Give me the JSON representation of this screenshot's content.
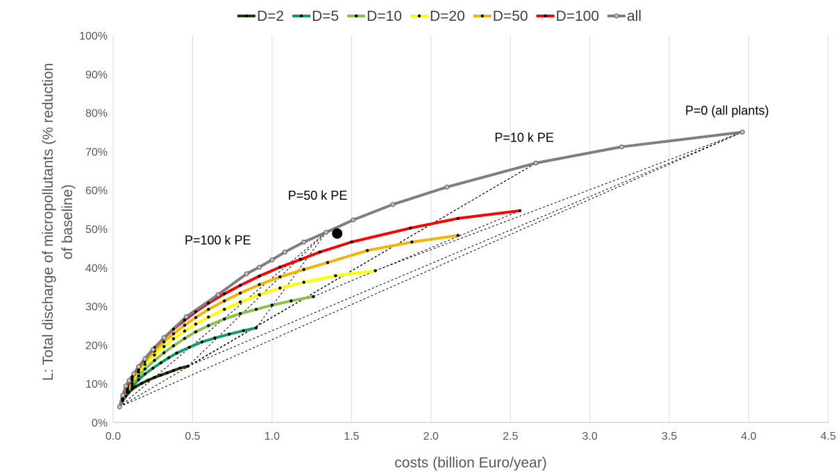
{
  "chart_data": {
    "type": "line",
    "xlabel": "costs (billion Euro/year)",
    "ylabel": "L: Total discharge of micropollutants (% reduction of baseline)",
    "xlim": [
      0,
      4.5
    ],
    "ylim": [
      0,
      100
    ],
    "x_ticks": [
      "0.0",
      "0.5",
      "1.0",
      "1.5",
      "2.0",
      "2.5",
      "3.0",
      "3.5",
      "4.0",
      "4.5"
    ],
    "y_ticks": [
      "0%",
      "10%",
      "20%",
      "30%",
      "40%",
      "50%",
      "60%",
      "70%",
      "80%",
      "90%",
      "100%"
    ],
    "grid": "vertical",
    "legend_position": "top",
    "series": [
      {
        "name": "D=2",
        "color": "#1f3d0c",
        "points": [
          [
            0.04,
            4
          ],
          [
            0.06,
            5.6
          ],
          [
            0.08,
            6.8
          ],
          [
            0.1,
            7.8
          ],
          [
            0.12,
            8.6
          ],
          [
            0.14,
            9.2
          ],
          [
            0.18,
            10.1
          ],
          [
            0.22,
            10.9
          ],
          [
            0.26,
            11.6
          ],
          [
            0.3,
            12.2
          ],
          [
            0.34,
            12.8
          ],
          [
            0.38,
            13.4
          ],
          [
            0.42,
            14
          ],
          [
            0.47,
            14.5
          ]
        ]
      },
      {
        "name": "D=5",
        "color": "#0f9e63",
        "points": [
          [
            0.04,
            4
          ],
          [
            0.06,
            5.8
          ],
          [
            0.09,
            7.6
          ],
          [
            0.12,
            9.3
          ],
          [
            0.16,
            11
          ],
          [
            0.2,
            12.5
          ],
          [
            0.25,
            14
          ],
          [
            0.3,
            15.4
          ],
          [
            0.35,
            16.7
          ],
          [
            0.4,
            17.9
          ],
          [
            0.48,
            19.4
          ],
          [
            0.56,
            20.8
          ],
          [
            0.64,
            21.8
          ],
          [
            0.73,
            22.8
          ],
          [
            0.82,
            23.7
          ],
          [
            0.9,
            24.4
          ]
        ]
      },
      {
        "name": "D=10",
        "color": "#8bc34a",
        "points": [
          [
            0.04,
            4
          ],
          [
            0.06,
            6.2
          ],
          [
            0.09,
            8.2
          ],
          [
            0.12,
            10
          ],
          [
            0.16,
            12
          ],
          [
            0.2,
            13.8
          ],
          [
            0.26,
            16
          ],
          [
            0.32,
            18
          ],
          [
            0.38,
            19.8
          ],
          [
            0.45,
            21.7
          ],
          [
            0.52,
            23.4
          ],
          [
            0.6,
            25
          ],
          [
            0.7,
            26.7
          ],
          [
            0.8,
            28.1
          ],
          [
            0.9,
            29.2
          ],
          [
            1.0,
            30.3
          ],
          [
            1.12,
            31.4
          ],
          [
            1.26,
            32.5
          ]
        ]
      },
      {
        "name": "D=20",
        "color": "#ffff00",
        "points": [
          [
            0.04,
            4
          ],
          [
            0.06,
            6.4
          ],
          [
            0.09,
            8.7
          ],
          [
            0.12,
            10.8
          ],
          [
            0.16,
            13
          ],
          [
            0.2,
            15
          ],
          [
            0.26,
            17.4
          ],
          [
            0.32,
            19.6
          ],
          [
            0.38,
            21.6
          ],
          [
            0.45,
            23.6
          ],
          [
            0.52,
            25.4
          ],
          [
            0.6,
            27.2
          ],
          [
            0.7,
            29.2
          ],
          [
            0.8,
            31.1
          ],
          [
            0.92,
            33
          ],
          [
            1.05,
            34.7
          ],
          [
            1.2,
            36.2
          ],
          [
            1.4,
            37.9
          ],
          [
            1.65,
            39.2
          ]
        ]
      },
      {
        "name": "D=50",
        "color": "#f5b400",
        "points": [
          [
            0.04,
            4
          ],
          [
            0.06,
            6.6
          ],
          [
            0.09,
            9
          ],
          [
            0.12,
            11.3
          ],
          [
            0.16,
            13.6
          ],
          [
            0.2,
            15.8
          ],
          [
            0.26,
            18.4
          ],
          [
            0.32,
            20.8
          ],
          [
            0.38,
            22.9
          ],
          [
            0.45,
            25.1
          ],
          [
            0.52,
            27.1
          ],
          [
            0.6,
            29.2
          ],
          [
            0.7,
            31.4
          ],
          [
            0.8,
            33.4
          ],
          [
            0.92,
            35.6
          ],
          [
            1.05,
            37.6
          ],
          [
            1.2,
            39.5
          ],
          [
            1.35,
            41.3
          ],
          [
            1.6,
            44.4
          ],
          [
            1.88,
            46.6
          ],
          [
            2.17,
            48.3
          ]
        ]
      },
      {
        "name": "D=100",
        "color": "#ff0000",
        "points": [
          [
            0.04,
            4
          ],
          [
            0.06,
            6.8
          ],
          [
            0.09,
            9.3
          ],
          [
            0.12,
            11.8
          ],
          [
            0.16,
            14.2
          ],
          [
            0.2,
            16.5
          ],
          [
            0.26,
            19.3
          ],
          [
            0.32,
            21.8
          ],
          [
            0.38,
            24.1
          ],
          [
            0.45,
            26.4
          ],
          [
            0.52,
            28.6
          ],
          [
            0.6,
            30.8
          ],
          [
            0.7,
            33.2
          ],
          [
            0.8,
            35.4
          ],
          [
            0.92,
            37.8
          ],
          [
            1.05,
            40.1
          ],
          [
            1.18,
            42.1
          ],
          [
            1.3,
            44
          ],
          [
            1.5,
            46.6
          ],
          [
            1.87,
            50.2
          ],
          [
            2.17,
            52.7
          ],
          [
            2.56,
            54.7
          ]
        ]
      },
      {
        "name": "all",
        "color": "#7f7f7f",
        "points": [
          [
            0.04,
            4
          ],
          [
            0.06,
            7
          ],
          [
            0.08,
            9.4
          ],
          [
            0.1,
            10.8
          ],
          [
            0.13,
            12.6
          ],
          [
            0.16,
            14.4
          ],
          [
            0.2,
            16.4
          ],
          [
            0.25,
            18.8
          ],
          [
            0.32,
            21.9
          ],
          [
            0.46,
            27.3
          ],
          [
            0.66,
            33
          ],
          [
            0.84,
            38.4
          ],
          [
            0.92,
            40.1
          ],
          [
            1.0,
            42
          ],
          [
            1.08,
            44
          ],
          [
            1.2,
            46.6
          ],
          [
            1.34,
            49.1
          ],
          [
            1.51,
            52.3
          ],
          [
            1.76,
            56.3
          ],
          [
            2.1,
            60.8
          ],
          [
            2.66,
            67
          ],
          [
            3.2,
            71.2
          ],
          [
            3.96,
            75
          ]
        ]
      }
    ],
    "dashed_lines": [
      [
        [
          0.04,
          4
        ],
        [
          1.34,
          49.1
        ]
      ],
      [
        [
          0.04,
          4
        ],
        [
          2.66,
          67
        ]
      ],
      [
        [
          0.04,
          4
        ],
        [
          3.96,
          75
        ]
      ],
      [
        [
          0.47,
          14.5
        ],
        [
          1.34,
          49.1
        ]
      ],
      [
        [
          0.47,
          14.5
        ],
        [
          2.66,
          67
        ]
      ],
      [
        [
          0.47,
          14.5
        ],
        [
          3.96,
          75
        ]
      ],
      [
        [
          0.9,
          24.4
        ],
        [
          1.34,
          49.1
        ]
      ],
      [
        [
          1.26,
          32.5
        ],
        [
          2.56,
          54.7
        ]
      ],
      [
        [
          1.65,
          39.2
        ],
        [
          3.96,
          75
        ]
      ]
    ],
    "highlight_point": [
      1.41,
      48.8
    ],
    "annotations": [
      {
        "text": "P=100 k PE",
        "x": 0.45,
        "y": 46
      },
      {
        "text": "P=50 k PE",
        "x": 1.1,
        "y": 57.5
      },
      {
        "text": "P=10 k PE",
        "x": 2.4,
        "y": 72.5
      },
      {
        "text": "P=0 (all plants)",
        "x": 3.6,
        "y": 79.5
      }
    ]
  }
}
